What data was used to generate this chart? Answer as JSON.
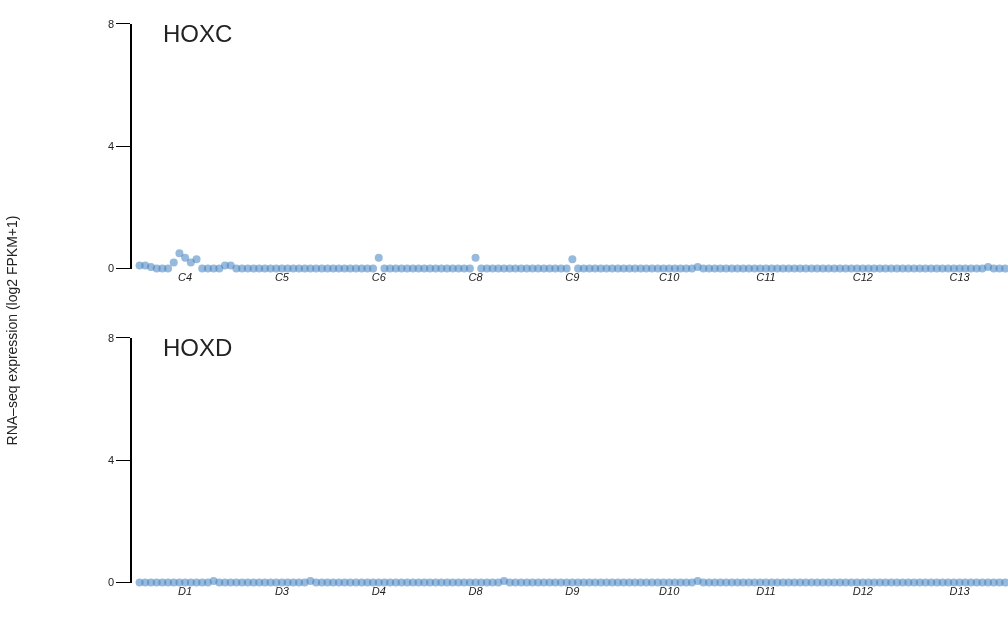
{
  "chart_data": [
    {
      "type": "scatter",
      "title": "HOXC",
      "ylabel": "RNA–seq expression (log2 FPKM+1)",
      "categories": [
        null,
        null,
        null,
        null,
        null,
        null,
        null,
        null,
        "C4",
        null,
        null,
        null,
        null,
        null,
        null,
        null,
        null,
        null,
        null,
        null,
        null,
        null,
        null,
        null,
        null,
        "C5",
        null,
        null,
        null,
        null,
        null,
        null,
        null,
        null,
        null,
        null,
        null,
        null,
        null,
        null,
        null,
        null,
        "C6",
        null,
        null,
        null,
        null,
        null,
        null,
        null,
        null,
        null,
        null,
        null,
        null,
        null,
        null,
        null,
        null,
        "C8",
        null,
        null,
        null,
        null,
        null,
        null,
        null,
        null,
        null,
        null,
        null,
        null,
        null,
        null,
        null,
        null,
        "C9",
        null,
        null,
        null,
        null,
        null,
        null,
        null,
        null,
        null,
        null,
        null,
        null,
        null,
        null,
        null,
        null,
        "C10",
        null,
        null,
        null,
        null,
        null,
        null,
        null,
        null,
        null,
        null,
        null,
        null,
        null,
        null,
        null,
        null,
        "C11",
        null,
        null,
        null,
        null,
        null,
        null,
        null,
        null,
        null,
        null,
        null,
        null,
        null,
        null,
        null,
        null,
        "C12",
        null,
        null,
        null,
        null,
        null,
        null,
        null,
        null,
        null,
        null,
        null,
        null,
        null,
        null,
        null,
        null,
        "C13",
        null,
        null,
        null,
        null,
        null,
        null,
        null,
        null
      ],
      "ylim": [
        0,
        8
      ],
      "yticks": [
        0,
        4,
        8
      ],
      "grid": false,
      "legend": false,
      "marker": "circle",
      "series": [
        {
          "color": "#3f7fbf",
          "values": [
            0.1,
            0.1,
            0.05,
            0,
            0,
            0,
            0.2,
            0.5,
            0.35,
            0.2,
            0.3,
            0,
            0,
            0,
            0,
            0.1,
            0.1,
            0,
            0,
            0,
            0,
            0,
            0,
            0,
            0,
            0,
            0,
            0,
            0,
            0,
            0,
            0,
            0,
            0,
            0,
            0,
            0,
            0,
            0,
            0,
            0,
            0,
            0.35,
            0,
            0,
            0,
            0,
            0,
            0,
            0,
            0,
            0,
            0,
            0,
            0,
            0,
            0,
            0,
            0,
            0.35,
            0,
            0,
            0,
            0,
            0,
            0,
            0,
            0,
            0,
            0,
            0,
            0,
            0,
            0,
            0,
            0,
            0.3,
            0,
            0,
            0,
            0,
            0,
            0,
            0,
            0,
            0,
            0,
            0,
            0,
            0,
            0,
            0,
            0,
            0,
            0,
            0,
            0,
            0,
            0.05,
            0,
            0,
            0,
            0,
            0,
            0,
            0,
            0,
            0,
            0,
            0,
            0,
            0,
            0,
            0,
            0,
            0,
            0,
            0,
            0,
            0,
            0,
            0,
            0,
            0,
            0,
            0,
            0,
            0,
            0,
            0,
            0,
            0,
            0,
            0,
            0,
            0,
            0,
            0,
            0,
            0,
            0,
            0,
            0,
            0,
            0,
            0,
            0,
            0,
            0,
            0.05,
            0,
            0,
            0
          ]
        }
      ]
    },
    {
      "type": "scatter",
      "title": "HOXD",
      "categories": [
        null,
        null,
        null,
        null,
        null,
        null,
        null,
        null,
        "D1",
        null,
        null,
        null,
        null,
        null,
        null,
        null,
        null,
        null,
        null,
        null,
        null,
        null,
        null,
        null,
        null,
        "D3",
        null,
        null,
        null,
        null,
        null,
        null,
        null,
        null,
        null,
        null,
        null,
        null,
        null,
        null,
        null,
        null,
        "D4",
        null,
        null,
        null,
        null,
        null,
        null,
        null,
        null,
        null,
        null,
        null,
        null,
        null,
        null,
        null,
        null,
        "D8",
        null,
        null,
        null,
        null,
        null,
        null,
        null,
        null,
        null,
        null,
        null,
        null,
        null,
        null,
        null,
        null,
        "D9",
        null,
        null,
        null,
        null,
        null,
        null,
        null,
        null,
        null,
        null,
        null,
        null,
        null,
        null,
        null,
        null,
        "D10",
        null,
        null,
        null,
        null,
        null,
        null,
        null,
        null,
        null,
        null,
        null,
        null,
        null,
        null,
        null,
        null,
        "D11",
        null,
        null,
        null,
        null,
        null,
        null,
        null,
        null,
        null,
        null,
        null,
        null,
        null,
        null,
        null,
        null,
        "D12",
        null,
        null,
        null,
        null,
        null,
        null,
        null,
        null,
        null,
        null,
        null,
        null,
        null,
        null,
        null,
        null,
        "D13",
        null,
        null,
        null,
        null,
        null,
        null,
        null,
        null
      ],
      "ylim": [
        0,
        8
      ],
      "yticks": [
        0,
        4,
        8
      ],
      "grid": false,
      "legend": false,
      "marker": "circle",
      "series": [
        {
          "color": "#3f7fbf",
          "values": [
            0,
            0,
            0,
            0,
            0,
            0,
            0,
            0,
            0,
            0,
            0,
            0,
            0,
            0.05,
            0,
            0,
            0,
            0,
            0,
            0,
            0,
            0,
            0,
            0,
            0,
            0,
            0,
            0,
            0,
            0,
            0.05,
            0,
            0,
            0,
            0,
            0,
            0,
            0,
            0,
            0,
            0,
            0,
            0,
            0,
            0,
            0,
            0,
            0,
            0,
            0,
            0,
            0,
            0,
            0,
            0,
            0,
            0,
            0,
            0,
            0,
            0,
            0,
            0,
            0,
            0.05,
            0,
            0,
            0,
            0,
            0,
            0,
            0,
            0,
            0,
            0,
            0,
            0,
            0,
            0,
            0,
            0,
            0,
            0,
            0,
            0,
            0,
            0,
            0,
            0,
            0,
            0,
            0,
            0,
            0,
            0,
            0,
            0,
            0,
            0.05,
            0,
            0,
            0,
            0,
            0,
            0,
            0,
            0,
            0,
            0,
            0,
            0,
            0,
            0,
            0,
            0,
            0,
            0,
            0,
            0,
            0,
            0,
            0,
            0,
            0,
            0,
            0,
            0,
            0,
            0,
            0,
            0,
            0,
            0,
            0,
            0,
            0,
            0,
            0,
            0,
            0,
            0,
            0,
            0,
            0,
            0,
            0,
            0,
            0,
            0,
            0,
            0,
            0,
            0
          ]
        }
      ]
    }
  ]
}
